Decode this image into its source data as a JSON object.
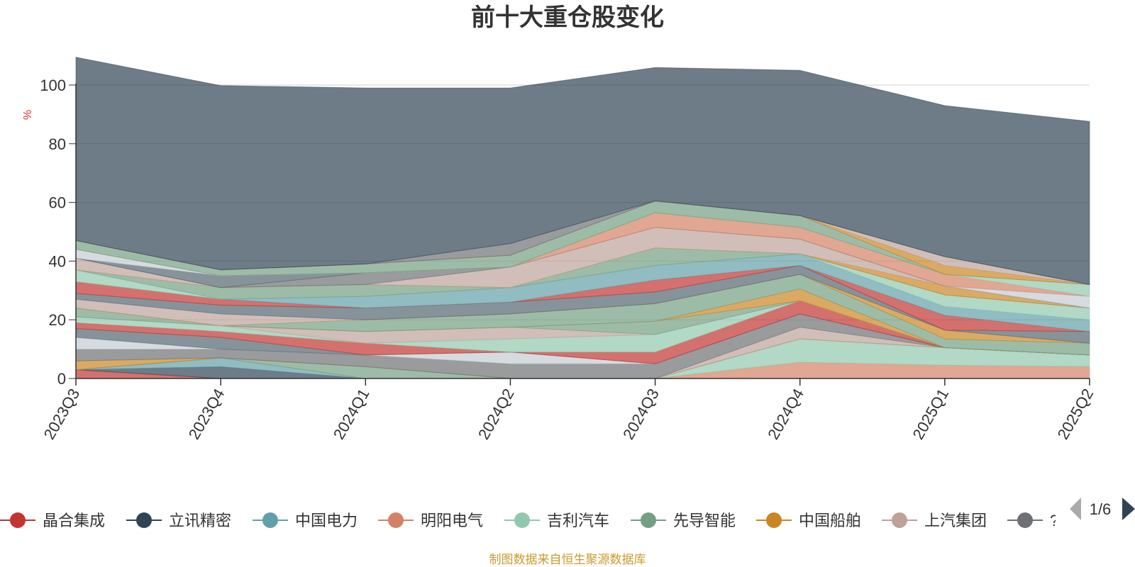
{
  "chart_data": {
    "type": "area",
    "stacked": true,
    "title": "前十大重仓股变化",
    "ylabel": "%",
    "ylim": [
      0,
      100
    ],
    "yticks": [
      "0",
      "20",
      "40",
      "60",
      "80",
      "100"
    ],
    "categories": [
      "2023Q3",
      "2023Q4",
      "2024Q1",
      "2024Q2",
      "2024Q3",
      "2024Q4",
      "2025Q1",
      "2025Q2"
    ],
    "grid": true,
    "legend_position": "bottom",
    "legend_page": "1/6",
    "source": "制图数据来自恒生聚源数据库",
    "series": [
      {
        "name": "晶合集成",
        "color": "#c23531",
        "values": [
          3,
          0,
          0,
          0,
          0,
          0,
          0,
          0
        ]
      },
      {
        "name": "立讯精密",
        "color": "#2f4554",
        "values": [
          0,
          4,
          0,
          0,
          0,
          0,
          0,
          0
        ]
      },
      {
        "name": "中国电力",
        "color": "#61a0a8",
        "values": [
          0,
          3,
          0,
          0,
          0,
          0,
          0,
          0
        ]
      },
      {
        "name": "明阳电气",
        "color": "#d48265",
        "values": [
          0,
          0,
          0,
          0,
          0,
          5.5,
          4.5,
          4
        ]
      },
      {
        "name": "吉利汽车",
        "color": "#91c7ae",
        "values": [
          0,
          0,
          0,
          0,
          0,
          8,
          6,
          4
        ]
      },
      {
        "name": "先导智能",
        "color": "#749f83",
        "values": [
          0,
          0,
          4,
          0,
          0,
          0,
          0,
          0
        ]
      },
      {
        "name": "中国船舶",
        "color": "#ca8622",
        "values": [
          3,
          0,
          0,
          0,
          0,
          0,
          0,
          0
        ]
      },
      {
        "name": "上汽集团",
        "color": "#bda29a",
        "values": [
          0,
          0,
          0,
          0,
          0,
          4,
          0,
          0
        ]
      },
      {
        "values": [
          4,
          3,
          4,
          5,
          5,
          4.5,
          0,
          0
        ],
        "color": "#6e7074"
      },
      {
        "values": [
          4,
          0,
          0,
          4,
          0,
          0,
          0,
          0
        ],
        "color": "#c4ccd3"
      },
      {
        "values": [
          3,
          4,
          0,
          0,
          0,
          0,
          0,
          0
        ],
        "color": "#546570"
      },
      {
        "values": [
          2,
          2,
          4,
          0,
          4,
          4.5,
          0,
          0
        ],
        "color": "#c23531"
      },
      {
        "values": [
          2,
          2,
          0,
          4.5,
          6,
          0,
          0,
          0
        ],
        "color": "#91c7ae"
      },
      {
        "values": [
          0,
          0,
          4,
          4,
          0,
          0,
          0,
          0
        ],
        "color": "#bda29a"
      },
      {
        "values": [
          3,
          0,
          0,
          0,
          4.5,
          0,
          0,
          0
        ],
        "color": "#749f83"
      },
      {
        "values": [
          0,
          0,
          0,
          0,
          0,
          4,
          0,
          0
        ],
        "color": "#ca8622"
      },
      {
        "values": [
          0,
          0,
          4,
          4.5,
          6,
          5,
          3,
          4
        ]
      },
      {
        "values": [
          0,
          0,
          0,
          0,
          0,
          0,
          3,
          0
        ]
      },
      {
        "values": [
          3,
          4,
          0,
          0,
          0,
          0,
          0,
          0
        ]
      },
      {
        "values": [
          0,
          0,
          0,
          0,
          0,
          0,
          0,
          0
        ]
      },
      {
        "values": [
          2,
          3,
          4,
          4,
          4,
          3,
          0,
          4
        ]
      },
      {
        "values": [
          0,
          0,
          0,
          0,
          0,
          0,
          0,
          0
        ]
      },
      {
        "values": [
          4,
          2,
          0,
          0,
          4,
          0,
          5,
          0
        ]
      },
      {
        "values": [
          0,
          0,
          0,
          0,
          0,
          0,
          0,
          0
        ]
      },
      {
        "values": [
          0,
          0,
          4,
          5,
          5,
          4,
          3,
          4
        ]
      },
      {
        "values": [
          0,
          0,
          0,
          0,
          0,
          0,
          0,
          0
        ]
      },
      {
        "values": [
          4,
          0,
          0,
          0,
          0,
          0,
          4,
          4
        ]
      },
      {
        "values": [
          0,
          4,
          4,
          0,
          6,
          0,
          0,
          0
        ]
      },
      {
        "values": [
          0,
          0,
          0,
          0,
          0,
          0,
          3,
          0
        ]
      },
      {
        "values": [
          4,
          0,
          0,
          7,
          7,
          5,
          0,
          0
        ]
      },
      {
        "values": [
          0,
          0,
          4,
          0,
          0,
          0,
          0,
          0
        ]
      },
      {
        "values": [
          0,
          4,
          0,
          0,
          0,
          0,
          0,
          0
        ]
      },
      {
        "values": [
          3,
          0,
          0,
          0,
          0,
          0,
          0,
          4
        ]
      },
      {
        "values": [
          0,
          0,
          0,
          0,
          0,
          0,
          0,
          0
        ]
      },
      {
        "values": [
          0,
          0,
          0,
          0,
          0,
          0,
          0,
          0
        ]
      },
      {
        "values": [
          0,
          0,
          0,
          0,
          0,
          0,
          0,
          0
        ]
      },
      {
        "values": [
          0,
          0,
          0,
          0,
          5,
          4,
          4,
          0
        ]
      },
      {
        "values": [
          0,
          0,
          0,
          0,
          0,
          0,
          0,
          4
        ]
      },
      {
        "values": [
          3,
          2,
          3,
          4,
          4,
          4,
          0,
          0
        ]
      },
      {
        "values": [
          0,
          0,
          0,
          0,
          0,
          0,
          3,
          0
        ]
      },
      {
        "values": [
          0,
          0,
          0,
          0,
          0,
          0,
          3,
          0
        ]
      },
      {
        "values": [
          0,
          0,
          0,
          4,
          0,
          0,
          0,
          0
        ]
      },
      {
        "values": [
          0,
          0,
          0,
          0,
          0,
          0,
          0,
          0
        ]
      },
      {
        "values": [
          0,
          0,
          0,
          0,
          0,
          0,
          0,
          0
        ]
      },
      {
        "values": [
          0,
          0,
          0,
          0,
          0,
          0,
          0,
          0
        ]
      },
      {
        "values": [
          62.5,
          62.8,
          60,
          53,
          45.5,
          49.5,
          51.5,
          55.6
        ]
      }
    ]
  },
  "legend_items": [
    {
      "name": "晶合集成",
      "color": "#c23531"
    },
    {
      "name": "立讯精密",
      "color": "#2f4554"
    },
    {
      "name": "中国电力",
      "color": "#61a0a8"
    },
    {
      "name": "明阳电气",
      "color": "#d48265"
    },
    {
      "name": "吉利汽车",
      "color": "#91c7ae"
    },
    {
      "name": "先导智能",
      "color": "#749f83"
    },
    {
      "name": "中国船舶",
      "color": "#ca8622"
    },
    {
      "name": "上汽集团",
      "color": "#bda29a"
    },
    {
      "name": "? ",
      "color": "#6e7074"
    }
  ],
  "pager": {
    "text": "1/6"
  }
}
